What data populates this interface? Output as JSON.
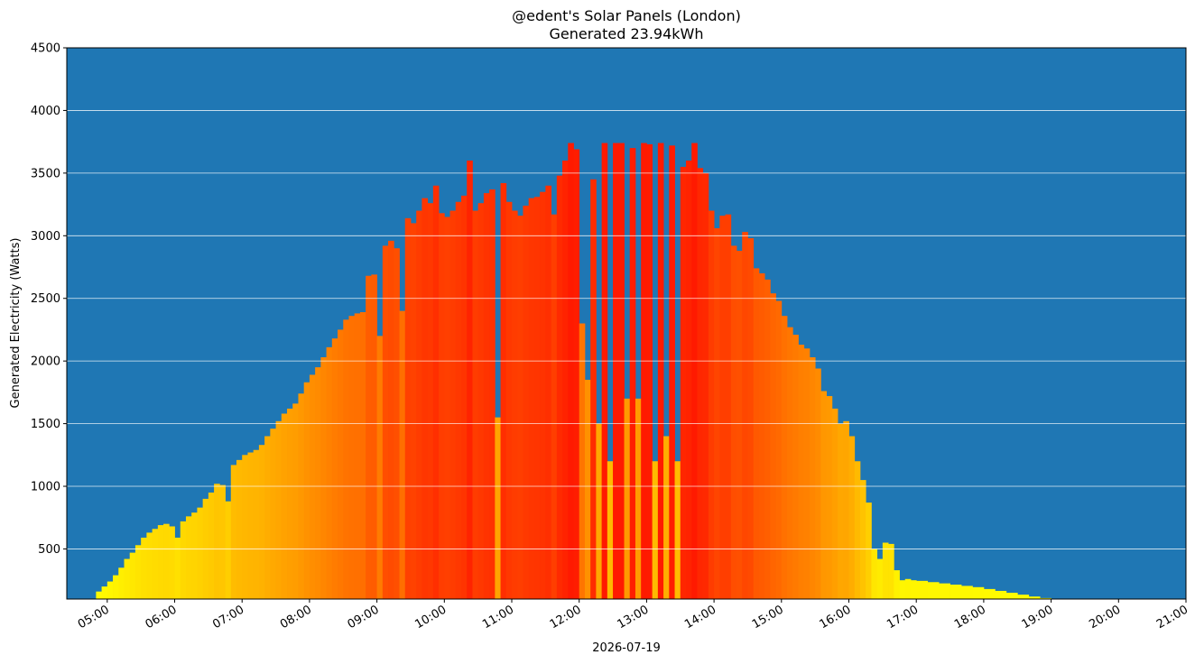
{
  "chart_data": {
    "type": "bar",
    "title": "@edent's Solar Panels (London)",
    "subtitle": "Generated 23.94kWh",
    "ylabel": "Generated Electricity (Watts)",
    "xlabel": "2026-07-19",
    "ylim": [
      100,
      4500
    ],
    "xlim": [
      "04:24",
      "21:00"
    ],
    "yticks": [
      500,
      1000,
      1500,
      2000,
      2500,
      3000,
      3500,
      4000,
      4500
    ],
    "xticks": [
      "05:00",
      "06:00",
      "07:00",
      "08:00",
      "09:00",
      "10:00",
      "11:00",
      "12:00",
      "13:00",
      "14:00",
      "15:00",
      "16:00",
      "17:00",
      "18:00",
      "19:00",
      "20:00",
      "21:00"
    ],
    "grid": "horizontal",
    "colors": {
      "background": "#1f77b4",
      "grid": "#ffffff",
      "low": "#ffff00",
      "high": "#ff1a00"
    },
    "points": [
      [
        "04:45",
        100
      ],
      [
        "04:50",
        160
      ],
      [
        "04:55",
        200
      ],
      [
        "05:00",
        240
      ],
      [
        "05:05",
        290
      ],
      [
        "05:10",
        350
      ],
      [
        "05:15",
        420
      ],
      [
        "05:20",
        470
      ],
      [
        "05:25",
        530
      ],
      [
        "05:30",
        590
      ],
      [
        "05:35",
        630
      ],
      [
        "05:40",
        660
      ],
      [
        "05:45",
        690
      ],
      [
        "05:50",
        700
      ],
      [
        "05:55",
        680
      ],
      [
        "06:00",
        590
      ],
      [
        "06:05",
        720
      ],
      [
        "06:10",
        760
      ],
      [
        "06:15",
        790
      ],
      [
        "06:20",
        830
      ],
      [
        "06:25",
        900
      ],
      [
        "06:30",
        950
      ],
      [
        "06:35",
        1020
      ],
      [
        "06:40",
        1010
      ],
      [
        "06:45",
        880
      ],
      [
        "06:50",
        1170
      ],
      [
        "06:55",
        1210
      ],
      [
        "07:00",
        1250
      ],
      [
        "07:05",
        1270
      ],
      [
        "07:10",
        1290
      ],
      [
        "07:15",
        1330
      ],
      [
        "07:20",
        1400
      ],
      [
        "07:25",
        1460
      ],
      [
        "07:30",
        1520
      ],
      [
        "07:35",
        1580
      ],
      [
        "07:40",
        1620
      ],
      [
        "07:45",
        1660
      ],
      [
        "07:50",
        1740
      ],
      [
        "07:55",
        1830
      ],
      [
        "08:00",
        1890
      ],
      [
        "08:05",
        1950
      ],
      [
        "08:10",
        2030
      ],
      [
        "08:15",
        2110
      ],
      [
        "08:20",
        2180
      ],
      [
        "08:25",
        2250
      ],
      [
        "08:30",
        2330
      ],
      [
        "08:35",
        2360
      ],
      [
        "08:40",
        2380
      ],
      [
        "08:45",
        2390
      ],
      [
        "08:50",
        2680
      ],
      [
        "08:55",
        2690
      ],
      [
        "09:00",
        2200
      ],
      [
        "09:05",
        2920
      ],
      [
        "09:10",
        2960
      ],
      [
        "09:15",
        2900
      ],
      [
        "09:20",
        2400
      ],
      [
        "09:25",
        3140
      ],
      [
        "09:30",
        3100
      ],
      [
        "09:35",
        3200
      ],
      [
        "09:40",
        3300
      ],
      [
        "09:45",
        3260
      ],
      [
        "09:50",
        3400
      ],
      [
        "09:55",
        3180
      ],
      [
        "10:00",
        3150
      ],
      [
        "10:05",
        3200
      ],
      [
        "10:10",
        3270
      ],
      [
        "10:15",
        3320
      ],
      [
        "10:20",
        3600
      ],
      [
        "10:25",
        3200
      ],
      [
        "10:30",
        3260
      ],
      [
        "10:35",
        3340
      ],
      [
        "10:40",
        3370
      ],
      [
        "10:45",
        1550
      ],
      [
        "10:50",
        3420
      ],
      [
        "10:55",
        3270
      ],
      [
        "11:00",
        3200
      ],
      [
        "11:05",
        3160
      ],
      [
        "11:10",
        3240
      ],
      [
        "11:15",
        3300
      ],
      [
        "11:20",
        3310
      ],
      [
        "11:25",
        3350
      ],
      [
        "11:30",
        3400
      ],
      [
        "11:35",
        3170
      ],
      [
        "11:40",
        3480
      ],
      [
        "11:45",
        3600
      ],
      [
        "11:50",
        3740
      ],
      [
        "11:55",
        3690
      ],
      [
        "12:00",
        2300
      ],
      [
        "12:05",
        1850
      ],
      [
        "12:10",
        3450
      ],
      [
        "12:15",
        1500
      ],
      [
        "12:20",
        3740
      ],
      [
        "12:25",
        1200
      ],
      [
        "12:30",
        3740
      ],
      [
        "12:35",
        3740
      ],
      [
        "12:40",
        1700
      ],
      [
        "12:45",
        3700
      ],
      [
        "12:50",
        1700
      ],
      [
        "12:55",
        3740
      ],
      [
        "13:00",
        3730
      ],
      [
        "13:05",
        1200
      ],
      [
        "13:10",
        3740
      ],
      [
        "13:15",
        1400
      ],
      [
        "13:20",
        3720
      ],
      [
        "13:25",
        1200
      ],
      [
        "13:30",
        3550
      ],
      [
        "13:35",
        3600
      ],
      [
        "13:40",
        3740
      ],
      [
        "13:45",
        3540
      ],
      [
        "13:50",
        3500
      ],
      [
        "13:55",
        3200
      ],
      [
        "14:00",
        3060
      ],
      [
        "14:05",
        3160
      ],
      [
        "14:10",
        3170
      ],
      [
        "14:15",
        2920
      ],
      [
        "14:20",
        2880
      ],
      [
        "14:25",
        3030
      ],
      [
        "14:30",
        2980
      ],
      [
        "14:35",
        2740
      ],
      [
        "14:40",
        2700
      ],
      [
        "14:45",
        2650
      ],
      [
        "14:50",
        2540
      ],
      [
        "14:55",
        2480
      ],
      [
        "15:00",
        2360
      ],
      [
        "15:05",
        2270
      ],
      [
        "15:10",
        2210
      ],
      [
        "15:15",
        2130
      ],
      [
        "15:20",
        2100
      ],
      [
        "15:25",
        2030
      ],
      [
        "15:30",
        1940
      ],
      [
        "15:35",
        1760
      ],
      [
        "15:40",
        1720
      ],
      [
        "15:45",
        1620
      ],
      [
        "15:50",
        1500
      ],
      [
        "15:55",
        1520
      ],
      [
        "16:00",
        1400
      ],
      [
        "16:05",
        1200
      ],
      [
        "16:10",
        1050
      ],
      [
        "16:15",
        870
      ],
      [
        "16:20",
        500
      ],
      [
        "16:25",
        420
      ],
      [
        "16:30",
        550
      ],
      [
        "16:35",
        540
      ],
      [
        "16:40",
        330
      ],
      [
        "16:45",
        250
      ],
      [
        "16:50",
        260
      ],
      [
        "16:55",
        250
      ],
      [
        "17:00",
        245
      ],
      [
        "17:10",
        235
      ],
      [
        "17:20",
        225
      ],
      [
        "17:30",
        215
      ],
      [
        "17:40",
        205
      ],
      [
        "17:50",
        195
      ],
      [
        "18:00",
        180
      ],
      [
        "18:10",
        165
      ],
      [
        "18:20",
        150
      ],
      [
        "18:30",
        135
      ],
      [
        "18:40",
        120
      ],
      [
        "18:50",
        108
      ],
      [
        "19:00",
        100
      ]
    ]
  }
}
